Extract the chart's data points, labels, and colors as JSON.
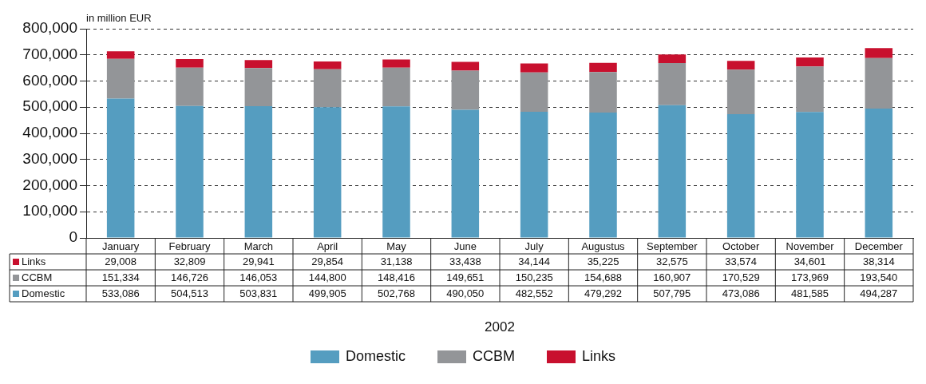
{
  "chart_data": {
    "type": "bar",
    "stacked": true,
    "ylabel": "in million EUR",
    "annotations": [
      "2002"
    ],
    "categories": [
      "January",
      "February",
      "March",
      "April",
      "May",
      "June",
      "July",
      "Augustus",
      "September",
      "October",
      "November",
      "December"
    ],
    "series": [
      {
        "name": "Domestic",
        "color": "#559dc0",
        "values": [
          533086,
          504513,
          503831,
          499905,
          502768,
          490050,
          482552,
          479292,
          507795,
          473086,
          481585,
          494287
        ],
        "value_labels": [
          "533,086",
          "504,513",
          "503,831",
          "499,905",
          "502,768",
          "490,050",
          "482,552",
          "479,292",
          "507,795",
          "473,086",
          "481,585",
          "494,287"
        ]
      },
      {
        "name": "CCBM",
        "color": "#939598",
        "values": [
          151334,
          146726,
          146053,
          144800,
          148416,
          149651,
          150235,
          154688,
          160907,
          170529,
          173969,
          193540
        ],
        "value_labels": [
          "151,334",
          "146,726",
          "146,053",
          "144,800",
          "148,416",
          "149,651",
          "150,235",
          "154,688",
          "160,907",
          "170,529",
          "173,969",
          "193,540"
        ]
      },
      {
        "name": "Links",
        "color": "#c8102e",
        "values": [
          29008,
          32809,
          29941,
          29854,
          31138,
          33438,
          34144,
          35225,
          32575,
          33574,
          34601,
          38314
        ],
        "value_labels": [
          "29,008",
          "32,809",
          "29,941",
          "29,854",
          "31,138",
          "33,438",
          "34,144",
          "35,225",
          "32,575",
          "33,574",
          "34,601",
          "38,314"
        ]
      }
    ],
    "ylim": [
      0,
      800000
    ],
    "yticks": [
      0,
      {
        "value": 100000,
        "label": "100,000"
      },
      {
        "value": 200000,
        "label": "200,000"
      },
      {
        "value": 300000,
        "label": "300,000"
      },
      {
        "value": 400000,
        "label": "400,000"
      },
      {
        "value": 500000,
        "label": "500,000"
      },
      {
        "value": 600000,
        "label": "600,000"
      },
      {
        "value": 700000,
        "label": "700,000"
      },
      {
        "value": 800000,
        "label": "800,000"
      }
    ],
    "grid": "y",
    "legend": "bottom"
  }
}
